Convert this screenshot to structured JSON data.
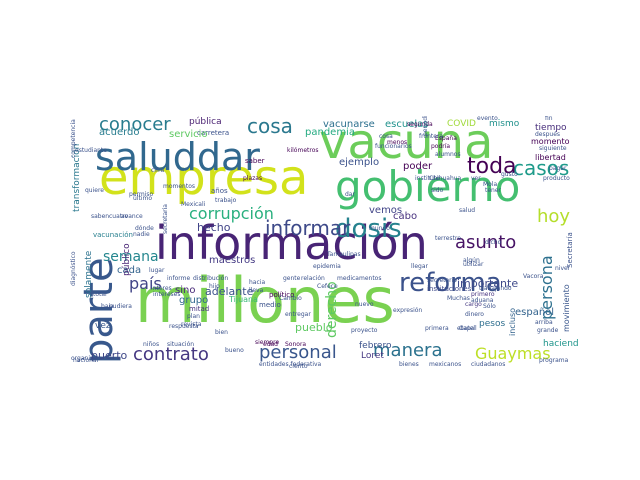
{
  "words": [
    {
      "text": "millones",
      "color": "#7ad151",
      "vertical": false
    },
    {
      "text": "información",
      "color": "#482475",
      "vertical": false
    },
    {
      "text": "empresa",
      "color": "#d2e21b",
      "vertical": false
    },
    {
      "text": "vacuna",
      "color": "#6ccd5a",
      "vertical": false
    },
    {
      "text": "gobierno",
      "color": "#44bf70",
      "vertical": false
    },
    {
      "text": "saluddar",
      "color": "#31688e",
      "vertical": false
    },
    {
      "text": "parte",
      "color": "#38588c",
      "vertical": true
    },
    {
      "text": "reforma",
      "color": "#3b528b",
      "vertical": false
    },
    {
      "text": "dosis",
      "color": "#26828e",
      "vertical": false
    },
    {
      "text": "casos",
      "color": "#1e9b8a",
      "vertical": false
    },
    {
      "text": "toda",
      "color": "#440154",
      "vertical": false
    },
    {
      "text": "cosa",
      "color": "#2a788e",
      "vertical": false
    },
    {
      "text": "conocer",
      "color": "#287c8e",
      "vertical": false
    },
    {
      "text": "informar",
      "color": "#3e4a89",
      "vertical": false
    },
    {
      "text": "corrupción",
      "color": "#2ab07f",
      "vertical": false
    },
    {
      "text": "asunto",
      "color": "#471365",
      "vertical": false
    },
    {
      "text": "hoy",
      "color": "#b5de2b",
      "vertical": false
    },
    {
      "text": "contrato",
      "color": "#453781",
      "vertical": false
    },
    {
      "text": "personal",
      "color": "#39568c",
      "vertical": false
    },
    {
      "text": "manera",
      "color": "#2c728e",
      "vertical": false
    },
    {
      "text": "Guaymas",
      "color": "#bddf26",
      "vertical": false
    },
    {
      "text": "semana",
      "color": "#24868e",
      "vertical": false
    },
    {
      "text": "país",
      "color": "#414487",
      "vertical": false
    },
    {
      "text": "persona",
      "color": "#2d708e",
      "vertical": true
    },
    {
      "text": "derecho",
      "color": "#5ec962",
      "vertical": true
    },
    {
      "text": "pueblo",
      "color": "#5ec962",
      "vertical": false
    },
    {
      "text": "puerto",
      "color": "#3f4788",
      "vertical": false
    },
    {
      "text": "importante",
      "color": "#3e4989",
      "vertical": false
    },
    {
      "text": "español",
      "color": "#33638d",
      "vertical": false
    },
    {
      "text": "escuelas",
      "color": "#20928c",
      "vertical": false
    },
    {
      "text": "vacunarse",
      "color": "#2d708e",
      "vertical": false
    },
    {
      "text": "pública",
      "color": "#481f70",
      "vertical": false
    },
    {
      "text": "carretera",
      "color": "#3b528b",
      "vertical": false
    },
    {
      "text": "servicio",
      "color": "#5ec962",
      "vertical": false
    },
    {
      "text": "acuerdo",
      "color": "#287c8e",
      "vertical": false
    },
    {
      "text": "pandemia",
      "color": "#25ab82",
      "vertical": false
    },
    {
      "text": "ejemplo",
      "color": "#3b528b",
      "vertical": false
    },
    {
      "text": "poder",
      "color": "#440154",
      "vertical": false
    },
    {
      "text": "hecho",
      "color": "#414487",
      "vertical": false
    },
    {
      "text": "maestros",
      "color": "#443983",
      "vertical": false
    },
    {
      "text": "adelante",
      "color": "#3b528b",
      "vertical": false
    },
    {
      "text": "grupo",
      "color": "#31688e",
      "vertical": false
    },
    {
      "text": "sino",
      "color": "#482878",
      "vertical": false
    },
    {
      "text": "cada",
      "color": "#33638d",
      "vertical": false
    },
    {
      "text": "vemos",
      "color": "#404387",
      "vertical": false
    },
    {
      "text": "cabo",
      "color": "#46307e",
      "vertical": false
    },
    {
      "text": "mismo",
      "color": "#21918c",
      "vertical": false
    },
    {
      "text": "tiempo",
      "color": "#472d7b",
      "vertical": false
    },
    {
      "text": "COVID",
      "color": "#a0da39",
      "vertical": false
    },
    {
      "text": "momento",
      "color": "#440154",
      "vertical": false
    },
    {
      "text": "libertad",
      "color": "#440154",
      "vertical": false
    },
    {
      "text": "pesos",
      "color": "#2e6e8e",
      "vertical": false
    },
    {
      "text": "haciendo",
      "color": "#1f958b",
      "vertical": false
    },
    {
      "text": "febrero",
      "color": "#3b528b",
      "vertical": false
    },
    {
      "text": "Loret",
      "color": "#453781",
      "vertical": false
    },
    {
      "text": "Tijuana",
      "color": "#38b977",
      "vertical": false
    },
    {
      "text": "vez",
      "color": "#38588c",
      "vertical": false
    },
    {
      "text": "solamente",
      "color": "#2c728e",
      "vertical": true
    },
    {
      "text": "transformación",
      "color": "#2a788e",
      "vertical": true
    },
    {
      "text": "público",
      "color": "#482475",
      "vertical": true
    },
    {
      "text": "vacunación",
      "color": "#277f8e",
      "vertical": false
    },
    {
      "text": "instituciones",
      "color": "#3e4a89",
      "vertical": false
    },
    {
      "text": "incluso",
      "color": "#33638d",
      "vertical": true
    },
    {
      "text": "movimiento",
      "color": "#39568c",
      "vertical": true
    },
    {
      "text": "mitad",
      "color": "#46327e",
      "vertical": false
    },
    {
      "text": "primera",
      "color": "#3b528b",
      "vertical": false
    },
    {
      "text": "etapa",
      "color": "#3b528b",
      "vertical": false
    },
    {
      "text": "dinero",
      "color": "#3b528b",
      "vertical": false
    },
    {
      "text": "cargo",
      "color": "#453882",
      "vertical": false
    },
    {
      "text": "primero",
      "color": "#46307e",
      "vertical": false
    },
    {
      "text": "Chihuahua",
      "color": "#3b528b",
      "vertical": false
    },
    {
      "text": "Secretaría",
      "color": "#3b528b",
      "vertical": true
    },
    {
      "text": "secretario",
      "color": "#3b528b",
      "vertical": false
    },
    {
      "text": "político",
      "color": "#440154",
      "vertical": false
    },
    {
      "text": "medio",
      "color": "#3b528b",
      "vertical": false
    },
    {
      "text": "entidades federativa",
      "color": "#3b528b",
      "vertical": false
    },
    {
      "text": "mexicanos",
      "color": "#3b528b",
      "vertical": false
    },
    {
      "text": "ciudadanos",
      "color": "#3b528b",
      "vertical": false
    },
    {
      "text": "bienes",
      "color": "#3b528b",
      "vertical": false
    },
    {
      "text": "programa",
      "color": "#3b528b",
      "vertical": false
    },
    {
      "text": "nacional",
      "color": "#3b528b",
      "vertical": false
    },
    {
      "text": "situación",
      "color": "#3b528b",
      "vertical": false
    },
    {
      "text": "siempre",
      "color": "#440154",
      "vertical": false
    },
    {
      "text": "saber",
      "color": "#440154",
      "vertical": false
    },
    {
      "text": "años",
      "color": "#3b528b",
      "vertical": false
    },
    {
      "text": "plazas",
      "color": "#440154",
      "vertical": false
    },
    {
      "text": "edad",
      "color": "#440154",
      "vertical": false
    },
    {
      "text": "kilómetros",
      "color": "#440154",
      "vertical": false
    },
    {
      "text": "segunda",
      "color": "#440154",
      "vertical": false
    },
    {
      "text": "menos",
      "color": "#440154",
      "vertical": false
    },
    {
      "text": "España",
      "color": "#440154",
      "vertical": false
    },
    {
      "text": "podría",
      "color": "#440154",
      "vertical": false
    },
    {
      "text": "periodista",
      "color": "#3b528b",
      "vertical": true
    },
    {
      "text": "instituto",
      "color": "#3b528b",
      "vertical": false
    },
    {
      "text": "Sonora",
      "color": "#440154",
      "vertical": false
    },
    {
      "text": "lugar",
      "color": "#3b528b",
      "vertical": false
    },
    {
      "text": "informe",
      "color": "#3b528b",
      "vertical": false
    },
    {
      "text": "distribución",
      "color": "#3b528b",
      "vertical": false
    },
    {
      "text": "gente",
      "color": "#3b528b",
      "vertical": false
    },
    {
      "text": "relación",
      "color": "#3b528b",
      "vertical": false
    },
    {
      "text": "medicamentos",
      "color": "#3b528b",
      "vertical": false
    },
    {
      "text": "Vacora",
      "color": "#3b528b",
      "vertical": false
    },
    {
      "text": "trabajando",
      "color": "#3b528b",
      "vertical": false
    },
    {
      "text": "Muchas",
      "color": "#3b528b",
      "vertical": false
    },
    {
      "text": "Tamaulipas",
      "color": "#3b528b",
      "vertical": false
    },
    {
      "text": "frontera",
      "color": "#3b528b",
      "vertical": false
    },
    {
      "text": "trabajo",
      "color": "#3b528b",
      "vertical": false
    },
    {
      "text": "Mexicali",
      "color": "#3b528b",
      "vertical": false
    },
    {
      "text": "tener",
      "color": "#3b528b",
      "vertical": false
    },
    {
      "text": "total",
      "color": "#3b528b",
      "vertical": false
    },
    {
      "text": "baja",
      "color": "#3b528b",
      "vertical": false
    },
    {
      "text": "plan",
      "color": "#3b528b",
      "vertical": false
    },
    {
      "text": "revista",
      "color": "#3b528b",
      "vertical": false
    },
    {
      "text": "bien",
      "color": "#3b528b",
      "vertical": false
    },
    {
      "text": "hijo",
      "color": "#3b528b",
      "vertical": false
    },
    {
      "text": "nuevo",
      "color": "#3b528b",
      "vertical": false
    },
    {
      "text": "avance",
      "color": "#3b528b",
      "vertical": false
    },
    {
      "text": "quiere",
      "color": "#3b528b",
      "vertical": false
    },
    {
      "text": "entregar",
      "color": "#3b528b",
      "vertical": false
    },
    {
      "text": "proyecto",
      "color": "#3b528b",
      "vertical": false
    },
    {
      "text": "expresión",
      "color": "#3b528b",
      "vertical": false
    },
    {
      "text": "cosa",
      "color": "#3b528b",
      "vertical": false
    },
    {
      "text": "evento",
      "color": "#3b528b",
      "vertical": false
    },
    {
      "text": "fin",
      "color": "#3b528b",
      "vertical": false
    },
    {
      "text": "siguiente",
      "color": "#3b528b",
      "vertical": false
    },
    {
      "text": "alumnos",
      "color": "#3b528b",
      "vertical": false
    },
    {
      "text": "estudiante",
      "color": "#3b528b",
      "vertical": false
    },
    {
      "text": "competencia",
      "color": "#3b528b",
      "vertical": true
    },
    {
      "text": "diagnóstico",
      "color": "#3b528b",
      "vertical": true
    },
    {
      "text": "organismo",
      "color": "#3b528b",
      "vertical": false
    },
    {
      "text": "saben",
      "color": "#3b528b",
      "vertical": false
    },
    {
      "text": "cuatro",
      "color": "#3b528b",
      "vertical": false
    },
    {
      "text": "último",
      "color": "#3b528b",
      "vertical": false
    },
    {
      "text": "permiso",
      "color": "#3b528b",
      "vertical": false
    },
    {
      "text": "epidemia",
      "color": "#3b528b",
      "vertical": false
    },
    {
      "text": "Cambio",
      "color": "#3b528b",
      "vertical": false
    },
    {
      "text": "Cefece",
      "color": "#3b528b",
      "vertical": false
    },
    {
      "text": "hacia",
      "color": "#3b528b",
      "vertical": false
    },
    {
      "text": "lleva",
      "color": "#3b528b",
      "vertical": false
    },
    {
      "text": "respuesta",
      "color": "#3b528b",
      "vertical": false
    },
    {
      "text": "aduana",
      "color": "#3b528b",
      "vertical": false
    },
    {
      "text": "Gatell",
      "color": "#3b528b",
      "vertical": false
    },
    {
      "text": "terrestre",
      "color": "#3b528b",
      "vertical": false
    },
    {
      "text": "gusto",
      "color": "#3b528b",
      "vertical": false
    },
    {
      "text": "pagar",
      "color": "#3b528b",
      "vertical": false
    },
    {
      "text": "nivel",
      "color": "#3b528b",
      "vertical": false
    },
    {
      "text": "producto",
      "color": "#3b528b",
      "vertical": false
    },
    {
      "text": "interes",
      "color": "#3b528b",
      "vertical": false
    },
    {
      "text": "intereses",
      "color": "#3b528b",
      "vertical": false
    },
    {
      "text": "pudiera",
      "color": "#3b528b",
      "vertical": false
    },
    {
      "text": "nadie",
      "color": "#3b528b",
      "vertical": false
    },
    {
      "text": "dónde",
      "color": "#3b528b",
      "vertical": false
    },
    {
      "text": "ciento",
      "color": "#3b528b",
      "vertical": false
    },
    {
      "text": "niños",
      "color": "#3b528b",
      "vertical": false
    },
    {
      "text": "Mola",
      "color": "#3b528b",
      "vertical": false
    },
    {
      "text": "cifra",
      "color": "#3b528b",
      "vertical": false
    },
    {
      "text": "salud",
      "color": "#3b528b",
      "vertical": false
    },
    {
      "text": "sido",
      "color": "#3b528b",
      "vertical": false
    },
    {
      "text": "llegar",
      "color": "#3b528b",
      "vertical": false
    },
    {
      "text": "algún",
      "color": "#3b528b",
      "vertical": false
    },
    {
      "text": "arriba",
      "color": "#3b528b",
      "vertical": false
    },
    {
      "text": "grande",
      "color": "#3b528b",
      "vertical": false
    },
    {
      "text": "Sólo",
      "color": "#3b528b",
      "vertical": false
    },
    {
      "text": "momentos",
      "color": "#3b528b",
      "vertical": false
    },
    {
      "text": "después",
      "color": "#3b528b",
      "vertical": false
    },
    {
      "text": "utilizar",
      "color": "#3b528b",
      "vertical": false
    },
    {
      "text": "funcionarios",
      "color": "#3b528b",
      "vertical": false
    },
    {
      "text": "ver",
      "color": "#3b528b",
      "vertical": false
    },
    {
      "text": "dicho",
      "color": "#3b528b",
      "vertical": false
    },
    {
      "text": "mundo",
      "color": "#3b528b",
      "vertical": false
    },
    {
      "text": "dar",
      "color": "#3b528b",
      "vertical": false
    },
    {
      "text": "bueno",
      "color": "#3b528b",
      "vertical": false
    },
    {
      "text": "secretaria",
      "color": "#3b528b",
      "vertical": false
    },
    {
      "text": "DELFINA GÓMEZ",
      "color": "#3b528b",
      "vertical": true
    }
  ]
}
